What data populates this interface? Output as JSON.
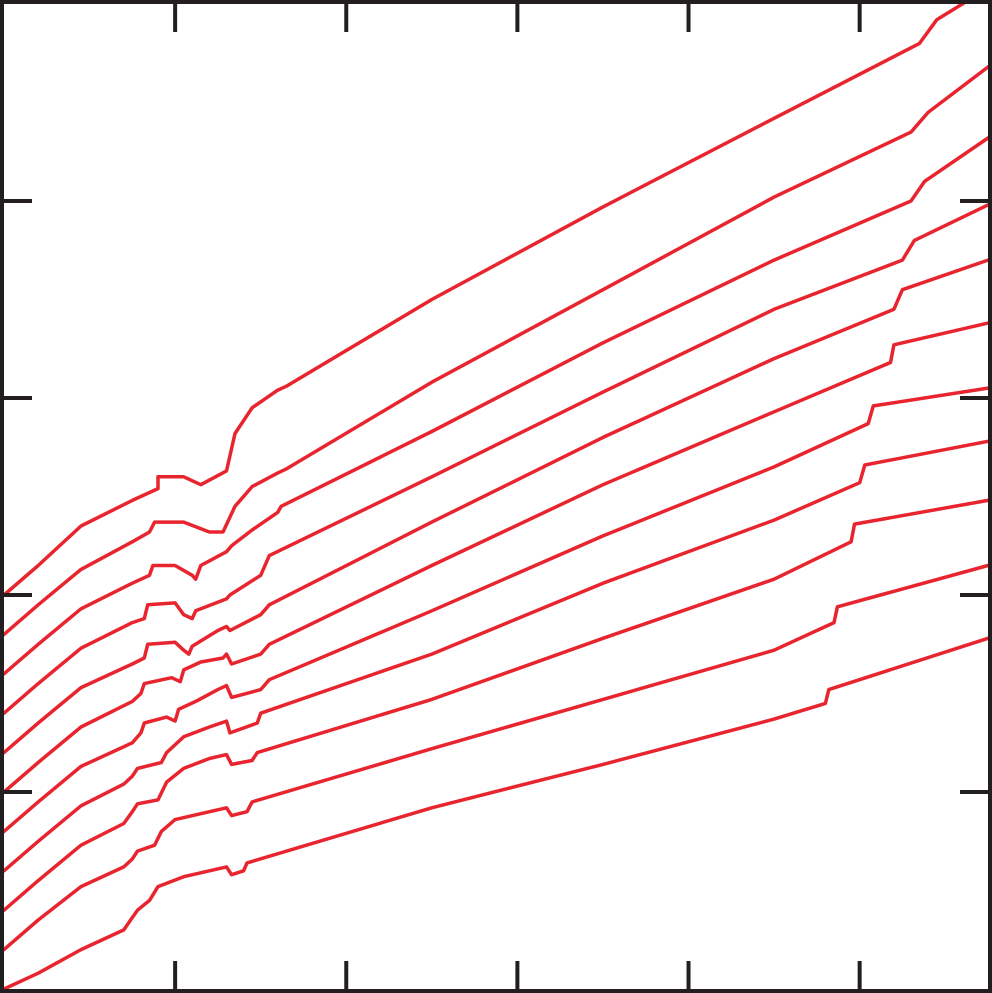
{
  "chart_data": {
    "type": "line",
    "title": "",
    "xlabel": "",
    "ylabel": "",
    "xlim": [
      0,
      5.75
    ],
    "ylim": [
      0,
      5
    ],
    "x_ticks": [
      1,
      2,
      3,
      4,
      5
    ],
    "y_ticks": [
      1,
      2,
      3,
      4
    ],
    "tick_labels_shown": false,
    "grid": false,
    "legend": "none",
    "line_color": "#e8252f",
    "axis_color": "#231f20",
    "series": [
      {
        "points": [
          [
            0,
            2.0
          ],
          [
            0.2,
            2.15
          ],
          [
            0.45,
            2.35
          ],
          [
            0.75,
            2.48
          ],
          [
            0.9,
            2.54
          ],
          [
            0.9,
            2.6
          ],
          [
            1.05,
            2.6
          ],
          [
            1.15,
            2.56
          ],
          [
            1.3,
            2.63
          ],
          [
            1.35,
            2.82
          ],
          [
            1.45,
            2.95
          ],
          [
            1.6,
            3.04
          ],
          [
            1.65,
            3.06
          ],
          [
            2.5,
            3.5
          ],
          [
            3.5,
            3.97
          ],
          [
            4.5,
            4.42
          ],
          [
            5.35,
            4.8
          ],
          [
            5.45,
            4.92
          ],
          [
            5.75,
            5.08
          ]
        ]
      },
      {
        "points": [
          [
            0,
            1.8
          ],
          [
            0.2,
            1.95
          ],
          [
            0.45,
            2.13
          ],
          [
            0.75,
            2.27
          ],
          [
            0.85,
            2.32
          ],
          [
            0.88,
            2.37
          ],
          [
            1.05,
            2.37
          ],
          [
            1.2,
            2.32
          ],
          [
            1.28,
            2.32
          ],
          [
            1.35,
            2.45
          ],
          [
            1.45,
            2.55
          ],
          [
            1.6,
            2.62
          ],
          [
            1.65,
            2.64
          ],
          [
            2.5,
            3.08
          ],
          [
            3.5,
            3.55
          ],
          [
            4.5,
            4.02
          ],
          [
            5.3,
            4.35
          ],
          [
            5.4,
            4.45
          ],
          [
            5.75,
            4.68
          ]
        ]
      },
      {
        "points": [
          [
            0,
            1.6
          ],
          [
            0.2,
            1.75
          ],
          [
            0.45,
            1.93
          ],
          [
            0.75,
            2.06
          ],
          [
            0.85,
            2.1
          ],
          [
            0.87,
            2.15
          ],
          [
            1.0,
            2.15
          ],
          [
            1.1,
            2.1
          ],
          [
            1.12,
            2.08
          ],
          [
            1.15,
            2.15
          ],
          [
            1.3,
            2.22
          ],
          [
            1.33,
            2.25
          ],
          [
            1.45,
            2.33
          ],
          [
            1.6,
            2.42
          ],
          [
            1.62,
            2.45
          ],
          [
            2.5,
            2.83
          ],
          [
            3.5,
            3.28
          ],
          [
            4.5,
            3.7
          ],
          [
            5.3,
            4.0
          ],
          [
            5.38,
            4.1
          ],
          [
            5.75,
            4.32
          ]
        ]
      },
      {
        "points": [
          [
            0,
            1.4
          ],
          [
            0.2,
            1.55
          ],
          [
            0.45,
            1.73
          ],
          [
            0.75,
            1.86
          ],
          [
            0.82,
            1.88
          ],
          [
            0.84,
            1.95
          ],
          [
            1.0,
            1.96
          ],
          [
            1.05,
            1.9
          ],
          [
            1.1,
            1.88
          ],
          [
            1.12,
            1.92
          ],
          [
            1.3,
            1.98
          ],
          [
            1.32,
            2.0
          ],
          [
            1.5,
            2.1
          ],
          [
            1.55,
            2.2
          ],
          [
            2.5,
            2.6
          ],
          [
            3.5,
            3.03
          ],
          [
            4.5,
            3.45
          ],
          [
            5.25,
            3.7
          ],
          [
            5.32,
            3.8
          ],
          [
            5.75,
            3.98
          ]
        ]
      },
      {
        "points": [
          [
            0,
            1.2
          ],
          [
            0.2,
            1.35
          ],
          [
            0.45,
            1.53
          ],
          [
            0.75,
            1.65
          ],
          [
            0.82,
            1.68
          ],
          [
            0.84,
            1.75
          ],
          [
            1.0,
            1.76
          ],
          [
            1.05,
            1.72
          ],
          [
            1.08,
            1.7
          ],
          [
            1.1,
            1.74
          ],
          [
            1.25,
            1.82
          ],
          [
            1.3,
            1.84
          ],
          [
            1.32,
            1.82
          ],
          [
            1.5,
            1.9
          ],
          [
            1.55,
            1.95
          ],
          [
            2.5,
            2.37
          ],
          [
            3.5,
            2.8
          ],
          [
            4.5,
            3.2
          ],
          [
            5.2,
            3.45
          ],
          [
            5.25,
            3.55
          ],
          [
            5.75,
            3.7
          ]
        ]
      },
      {
        "points": [
          [
            0,
            1.0
          ],
          [
            0.2,
            1.15
          ],
          [
            0.45,
            1.33
          ],
          [
            0.75,
            1.46
          ],
          [
            0.8,
            1.5
          ],
          [
            0.82,
            1.55
          ],
          [
            0.98,
            1.58
          ],
          [
            1.03,
            1.56
          ],
          [
            1.05,
            1.62
          ],
          [
            1.15,
            1.66
          ],
          [
            1.28,
            1.68
          ],
          [
            1.3,
            1.7
          ],
          [
            1.33,
            1.65
          ],
          [
            1.5,
            1.7
          ],
          [
            1.55,
            1.75
          ],
          [
            2.5,
            2.15
          ],
          [
            3.5,
            2.56
          ],
          [
            4.5,
            2.93
          ],
          [
            5.18,
            3.18
          ],
          [
            5.2,
            3.27
          ],
          [
            5.75,
            3.38
          ]
        ]
      },
      {
        "points": [
          [
            0,
            0.8
          ],
          [
            0.2,
            0.95
          ],
          [
            0.45,
            1.13
          ],
          [
            0.75,
            1.25
          ],
          [
            0.8,
            1.3
          ],
          [
            0.82,
            1.35
          ],
          [
            0.95,
            1.38
          ],
          [
            1.0,
            1.36
          ],
          [
            1.02,
            1.42
          ],
          [
            1.12,
            1.46
          ],
          [
            1.25,
            1.52
          ],
          [
            1.3,
            1.54
          ],
          [
            1.33,
            1.48
          ],
          [
            1.5,
            1.52
          ],
          [
            1.55,
            1.57
          ],
          [
            2.5,
            1.92
          ],
          [
            3.5,
            2.3
          ],
          [
            4.5,
            2.65
          ],
          [
            5.05,
            2.87
          ],
          [
            5.08,
            2.96
          ],
          [
            5.75,
            3.05
          ]
        ]
      },
      {
        "points": [
          [
            0,
            0.6
          ],
          [
            0.2,
            0.75
          ],
          [
            0.45,
            0.93
          ],
          [
            0.7,
            1.04
          ],
          [
            0.75,
            1.08
          ],
          [
            0.78,
            1.12
          ],
          [
            0.92,
            1.15
          ],
          [
            0.95,
            1.2
          ],
          [
            1.05,
            1.28
          ],
          [
            1.2,
            1.33
          ],
          [
            1.3,
            1.36
          ],
          [
            1.32,
            1.3
          ],
          [
            1.48,
            1.35
          ],
          [
            1.5,
            1.4
          ],
          [
            2.5,
            1.7
          ],
          [
            3.5,
            2.06
          ],
          [
            4.5,
            2.38
          ],
          [
            5.0,
            2.57
          ],
          [
            5.03,
            2.66
          ],
          [
            5.75,
            2.78
          ]
        ]
      },
      {
        "points": [
          [
            0,
            0.4
          ],
          [
            0.2,
            0.55
          ],
          [
            0.45,
            0.73
          ],
          [
            0.7,
            0.84
          ],
          [
            0.75,
            0.9
          ],
          [
            0.78,
            0.94
          ],
          [
            0.9,
            0.96
          ],
          [
            0.95,
            1.05
          ],
          [
            1.05,
            1.12
          ],
          [
            1.2,
            1.17
          ],
          [
            1.3,
            1.19
          ],
          [
            1.33,
            1.14
          ],
          [
            1.45,
            1.16
          ],
          [
            1.48,
            1.2
          ],
          [
            2.5,
            1.47
          ],
          [
            3.5,
            1.78
          ],
          [
            4.5,
            2.08
          ],
          [
            4.95,
            2.27
          ],
          [
            4.97,
            2.36
          ],
          [
            5.75,
            2.48
          ]
        ]
      },
      {
        "points": [
          [
            0,
            0.2
          ],
          [
            0.2,
            0.35
          ],
          [
            0.45,
            0.52
          ],
          [
            0.7,
            0.62
          ],
          [
            0.75,
            0.66
          ],
          [
            0.78,
            0.7
          ],
          [
            0.88,
            0.73
          ],
          [
            0.92,
            0.8
          ],
          [
            1.0,
            0.86
          ],
          [
            1.15,
            0.89
          ],
          [
            1.3,
            0.92
          ],
          [
            1.33,
            0.88
          ],
          [
            1.42,
            0.9
          ],
          [
            1.45,
            0.95
          ],
          [
            2.5,
            1.22
          ],
          [
            3.5,
            1.47
          ],
          [
            4.5,
            1.72
          ],
          [
            4.85,
            1.86
          ],
          [
            4.87,
            1.94
          ],
          [
            5.75,
            2.15
          ]
        ]
      },
      {
        "points": [
          [
            0,
            0.0
          ],
          [
            0.2,
            0.08
          ],
          [
            0.45,
            0.2
          ],
          [
            0.7,
            0.3
          ],
          [
            0.74,
            0.35
          ],
          [
            0.78,
            0.4
          ],
          [
            0.85,
            0.45
          ],
          [
            0.9,
            0.52
          ],
          [
            1.05,
            0.57
          ],
          [
            1.2,
            0.6
          ],
          [
            1.3,
            0.62
          ],
          [
            1.33,
            0.58
          ],
          [
            1.4,
            0.6
          ],
          [
            1.42,
            0.64
          ],
          [
            2.5,
            0.92
          ],
          [
            3.5,
            1.14
          ],
          [
            4.5,
            1.37
          ],
          [
            4.8,
            1.45
          ],
          [
            4.82,
            1.52
          ],
          [
            5.75,
            1.78
          ]
        ]
      }
    ]
  }
}
